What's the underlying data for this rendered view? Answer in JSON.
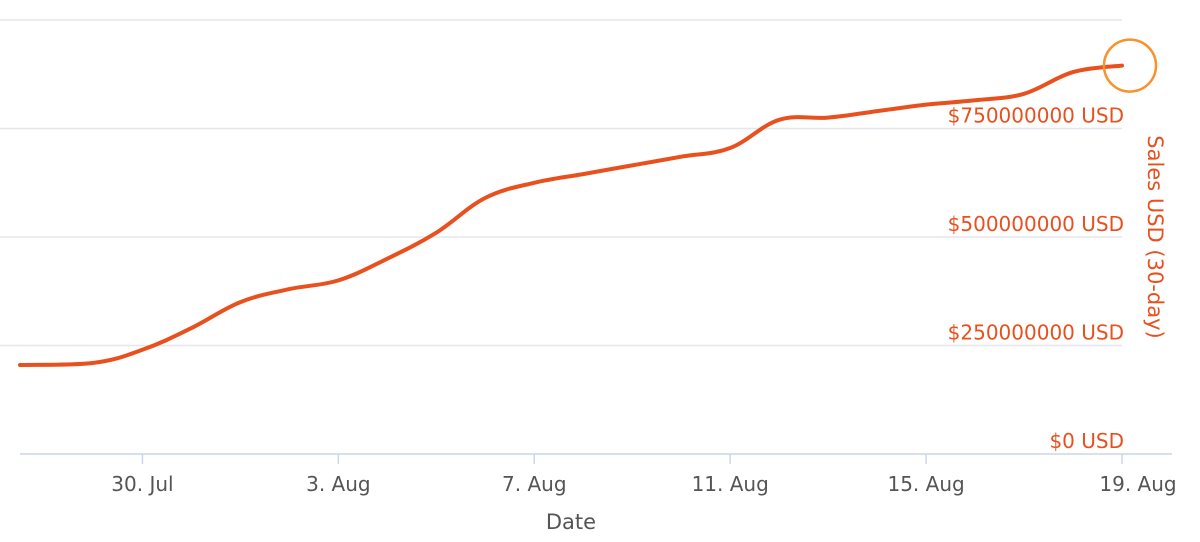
{
  "chart_data": {
    "type": "line",
    "title": "",
    "xlabel": "Date",
    "ylabel": "Sales USD (30-day)",
    "x_ticks": [
      "30. Jul",
      "3. Aug",
      "7. Aug",
      "11. Aug",
      "15. Aug",
      "19. Aug"
    ],
    "y_ticks": [
      "$0 USD",
      "$250000000 USD",
      "$500000000 USD",
      "$750000000 USD"
    ],
    "y_tick_values": [
      0,
      250000000,
      500000000,
      750000000
    ],
    "ylim": [
      0,
      1000000000
    ],
    "xlim": [
      "2021-07-27T12:00",
      "2021-08-19"
    ],
    "grid": true,
    "line_color": "#e8501e",
    "marker_color": "#f7922e",
    "series": [
      {
        "values": [
          {
            "x": "2021-07-27T12:00",
            "y": 205000000
          },
          {
            "x": "2021-07-29",
            "y": 210000000
          },
          {
            "x": "2021-07-30",
            "y": 240000000
          },
          {
            "x": "2021-07-31",
            "y": 290000000
          },
          {
            "x": "2021-08-01",
            "y": 350000000
          },
          {
            "x": "2021-08-02",
            "y": 380000000
          },
          {
            "x": "2021-08-03",
            "y": 400000000
          },
          {
            "x": "2021-08-04",
            "y": 450000000
          },
          {
            "x": "2021-08-05",
            "y": 510000000
          },
          {
            "x": "2021-08-06",
            "y": 590000000
          },
          {
            "x": "2021-08-07",
            "y": 625000000
          },
          {
            "x": "2021-08-08",
            "y": 645000000
          },
          {
            "x": "2021-08-09",
            "y": 665000000
          },
          {
            "x": "2021-08-10",
            "y": 685000000
          },
          {
            "x": "2021-08-11",
            "y": 705000000
          },
          {
            "x": "2021-08-12",
            "y": 770000000
          },
          {
            "x": "2021-08-13",
            "y": 775000000
          },
          {
            "x": "2021-08-14",
            "y": 790000000
          },
          {
            "x": "2021-08-15",
            "y": 805000000
          },
          {
            "x": "2021-08-16",
            "y": 815000000
          },
          {
            "x": "2021-08-17",
            "y": 830000000
          },
          {
            "x": "2021-08-18",
            "y": 880000000
          },
          {
            "x": "2021-08-19",
            "y": 895000000
          }
        ]
      }
    ]
  }
}
